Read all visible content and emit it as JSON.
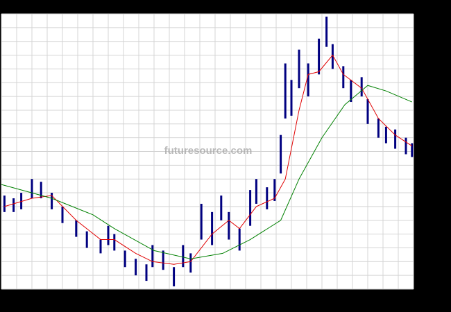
{
  "chart_data": {
    "type": "ohlc",
    "watermark": "futuresource.com",
    "xlim": [
      0,
      270
    ],
    "ylim": [
      0,
      100
    ],
    "xticks": [
      0,
      10,
      20,
      30,
      40,
      50,
      60,
      70,
      80,
      90,
      100,
      110,
      120,
      130,
      140,
      150,
      160,
      170,
      180,
      190,
      200,
      210,
      220,
      230,
      240,
      250,
      260,
      270
    ],
    "yticks": [
      0,
      5,
      10,
      15,
      20,
      25,
      30,
      35,
      40,
      45,
      50,
      55,
      60,
      65,
      70,
      75,
      80,
      85,
      90,
      95,
      100
    ],
    "grid": true,
    "price": {
      "color": "#000080",
      "x": [
        2,
        8,
        13,
        20,
        26,
        33,
        40,
        49,
        56,
        65,
        70,
        74,
        81,
        88,
        95,
        99,
        106,
        113,
        119,
        124,
        131,
        138,
        144,
        149,
        156,
        163,
        167,
        174,
        179,
        183,
        186,
        190,
        195,
        201,
        208,
        213,
        217,
        224,
        229,
        236,
        240,
        247,
        252,
        258,
        265,
        269
      ],
      "high": [
        34,
        33,
        35,
        40,
        39,
        35,
        30,
        25,
        21,
        18,
        23,
        20,
        14,
        11,
        9,
        16,
        14,
        8,
        16,
        13,
        31,
        28,
        34,
        28,
        22,
        36,
        40,
        37,
        40,
        56,
        82,
        76,
        87,
        82,
        91,
        99,
        89,
        81,
        76,
        77,
        69,
        62,
        59,
        58,
        55,
        53
      ],
      "low": [
        28,
        28,
        29,
        33,
        33,
        29,
        24,
        19,
        15,
        13,
        16,
        14,
        8,
        5,
        3,
        8,
        7,
        1,
        8,
        6,
        18,
        16,
        25,
        18,
        14,
        23,
        31,
        29,
        32,
        42,
        62,
        63,
        73,
        70,
        78,
        88,
        80,
        73,
        68,
        70,
        60,
        55,
        53,
        51,
        49,
        48
      ]
    },
    "lines": [
      {
        "color": "#e00000",
        "x": [
          2,
          20,
          33,
          49,
          65,
          74,
          88,
          99,
          113,
          124,
          138,
          149,
          156,
          167,
          179,
          186,
          195,
          201,
          208,
          217,
          224,
          236,
          247,
          258,
          269
        ],
        "values": [
          30,
          33,
          34,
          25,
          18,
          18,
          13,
          10,
          9,
          10,
          20,
          25,
          22,
          30,
          33,
          40,
          65,
          78,
          79,
          85,
          78,
          73,
          62,
          56,
          52
        ]
      },
      {
        "color": "#008000",
        "x": [
          0,
          33,
          60,
          74,
          100,
          124,
          145,
          163,
          183,
          195,
          210,
          225,
          240,
          252,
          269
        ],
        "values": [
          38,
          33,
          27,
          22,
          14,
          11,
          13,
          18,
          25,
          40,
          55,
          67,
          74,
          72,
          68
        ]
      }
    ]
  }
}
